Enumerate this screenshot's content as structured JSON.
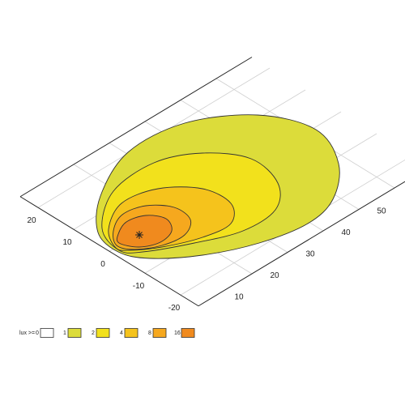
{
  "chart_data": {
    "type": "contour",
    "xlim": [
      -5,
      60
    ],
    "ylim": [
      -25,
      25
    ],
    "xticks": [
      10,
      20,
      30,
      40,
      50
    ],
    "yticks": [
      -20,
      -10,
      0,
      10,
      20
    ],
    "grid": true,
    "legend_title": "lux >=",
    "levels": [
      {
        "value": 0,
        "color": "#ffffff"
      },
      {
        "value": 1,
        "color": "#dcdc3a"
      },
      {
        "value": 2,
        "color": "#f2e11c"
      },
      {
        "value": 4,
        "color": "#f5c31c"
      },
      {
        "value": 8,
        "color": "#f6a81e"
      },
      {
        "value": 16,
        "color": "#f08a1e"
      }
    ]
  }
}
